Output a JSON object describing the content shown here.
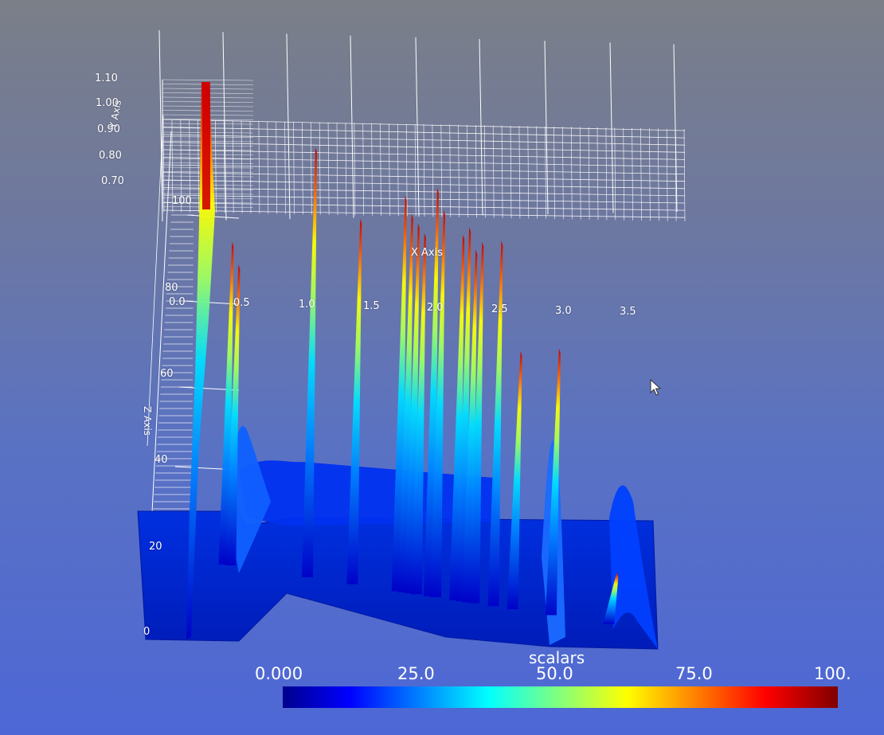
{
  "chart_data": {
    "type": "surface-3d",
    "x_axis": {
      "title": "X Axis",
      "tick_labels": [
        "0.0",
        "0.5",
        "1.0",
        "1.5",
        "2.0",
        "2.5",
        "3.0",
        "3.5"
      ]
    },
    "y_axis": {
      "title": "Y Axis",
      "tick_labels": [
        "0.70",
        "0.80",
        "0.90",
        "1.00",
        "1.10"
      ]
    },
    "z_axis": {
      "title": "Z Axis",
      "tick_labels": [
        "0",
        "20",
        "40",
        "60",
        "80",
        "100"
      ]
    },
    "scalar_bar": {
      "title": "scalars",
      "tick_labels": [
        "0.000",
        "25.0",
        "50.0",
        "75.0",
        "100."
      ],
      "range": [
        0,
        100
      ],
      "colormap": [
        "#00008f",
        "#0000ff",
        "#00ffff",
        "#ffff00",
        "#ff0000",
        "#800000"
      ]
    },
    "peaks": [
      {
        "x": 0.35,
        "z": 75
      },
      {
        "x": 0.4,
        "z": 70
      },
      {
        "x": 1.0,
        "z": 100
      },
      {
        "x": 1.35,
        "z": 85
      },
      {
        "x": 1.7,
        "z": 92
      },
      {
        "x": 1.75,
        "z": 88
      },
      {
        "x": 1.8,
        "z": 86
      },
      {
        "x": 1.85,
        "z": 84
      },
      {
        "x": 1.95,
        "z": 95
      },
      {
        "x": 2.0,
        "z": 90
      },
      {
        "x": 2.15,
        "z": 85
      },
      {
        "x": 2.2,
        "z": 87
      },
      {
        "x": 2.25,
        "z": 82
      },
      {
        "x": 2.3,
        "z": 84
      },
      {
        "x": 2.45,
        "z": 85
      },
      {
        "x": 2.6,
        "z": 60
      },
      {
        "x": 2.9,
        "z": 62
      },
      {
        "x": 3.35,
        "z": 12
      }
    ]
  }
}
